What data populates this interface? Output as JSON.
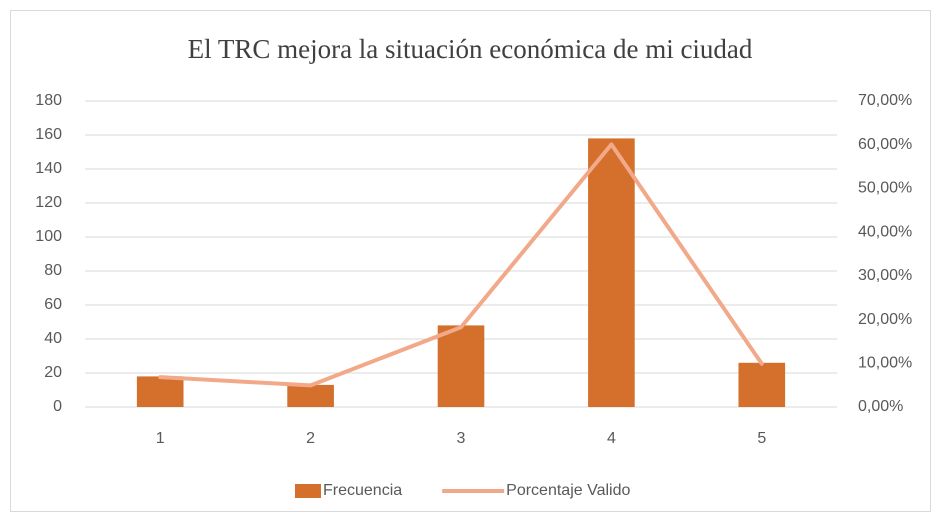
{
  "chart_data": {
    "type": "combo",
    "title": "El TRC mejora la situación económica de mi ciudad",
    "categories": [
      "1",
      "2",
      "3",
      "4",
      "5"
    ],
    "series": [
      {
        "name": "Frecuencia",
        "type": "bar",
        "color": "#d4702b",
        "values": [
          18,
          13,
          48,
          158,
          26
        ]
      },
      {
        "name": "Porcentaje Valido",
        "type": "line",
        "axis": "y2",
        "color": "#f2a98a",
        "values": [
          6.84,
          4.94,
          18.25,
          60.08,
          9.89
        ]
      }
    ],
    "ylim": [
      0,
      180
    ],
    "yticks": [
      0,
      20,
      40,
      60,
      80,
      100,
      120,
      140,
      160,
      180
    ],
    "y2lim": [
      0,
      70
    ],
    "y2ticks": [
      {
        "value": 0,
        "label": "0,00%"
      },
      {
        "value": 10,
        "label": "10,00%"
      },
      {
        "value": 20,
        "label": "20,00%"
      },
      {
        "value": 30,
        "label": "30,00%"
      },
      {
        "value": 40,
        "label": "40,00%"
      },
      {
        "value": 50,
        "label": "50,00%"
      },
      {
        "value": 60,
        "label": "60,00%"
      },
      {
        "value": 70,
        "label": "70,00%"
      }
    ],
    "grid": true,
    "legend": "bottom"
  }
}
